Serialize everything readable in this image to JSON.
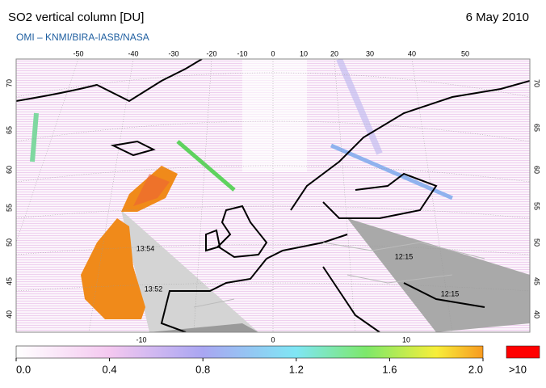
{
  "header": {
    "title": "SO2 vertical column [DU]",
    "date": "6 May 2010",
    "subtitle": "OMI  –  KNMI/BIRA-IASB/NASA"
  },
  "map": {
    "top_lon_labels": [
      "-50",
      "-40",
      "-30",
      "-20",
      "-10",
      "0",
      "10",
      "20",
      "30",
      "40",
      "50"
    ],
    "bottom_lon_labels": [
      "-10",
      "0",
      "10"
    ],
    "left_lat_labels": [
      "70",
      "65",
      "60",
      "55",
      "50",
      "45",
      "40"
    ],
    "right_lat_labels": [
      "70",
      "65",
      "60",
      "55",
      "50",
      "45",
      "40"
    ],
    "overpass_times": [
      "13:54",
      "13:52",
      "12:15",
      "12:15"
    ]
  },
  "colorbar": {
    "labels": [
      "0.0",
      "0.4",
      "0.8",
      "1.2",
      "1.6",
      "2.0"
    ],
    "overflow_label": ">10"
  }
}
